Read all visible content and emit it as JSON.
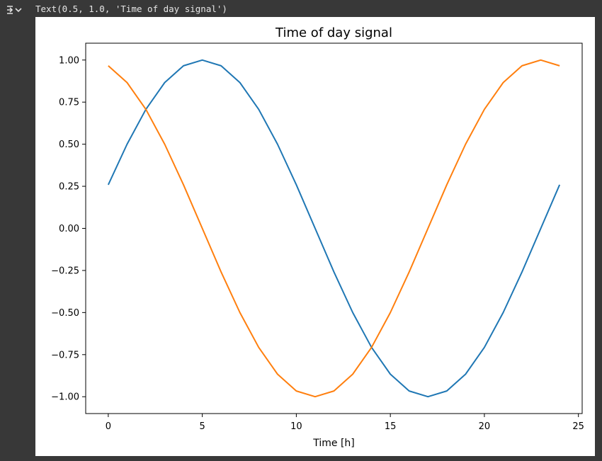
{
  "output": {
    "text": "Text(0.5, 1.0, 'Time of day signal')",
    "toggle_icon": "output-collapse-icon"
  },
  "chart_data": {
    "type": "line",
    "title": "Time of day signal",
    "xlabel": "Time [h]",
    "ylabel": "",
    "xlim": [
      -1.2,
      25.2
    ],
    "ylim": [
      -1.1,
      1.1
    ],
    "xticks": [
      0,
      5,
      10,
      15,
      20,
      25
    ],
    "xtick_labels": [
      "0",
      "5",
      "10",
      "15",
      "20",
      "25"
    ],
    "yticks": [
      1.0,
      0.75,
      0.5,
      0.25,
      0.0,
      -0.25,
      -0.5,
      -0.75,
      -1.0
    ],
    "ytick_labels": [
      "1.00",
      "0.75",
      "0.50",
      "0.25",
      "0.00",
      "−0.25",
      "−0.50",
      "−0.75",
      "−1.00"
    ],
    "grid": false,
    "x": [
      0,
      1,
      2,
      3,
      4,
      5,
      6,
      7,
      8,
      9,
      10,
      11,
      12,
      13,
      14,
      15,
      16,
      17,
      18,
      19,
      20,
      21,
      22,
      23,
      24
    ],
    "series": [
      {
        "color": "#1f77b4",
        "values": [
          0.259,
          0.5,
          0.707,
          0.866,
          0.966,
          1.0,
          0.966,
          0.866,
          0.707,
          0.5,
          0.259,
          0.0,
          -0.259,
          -0.5,
          -0.707,
          -0.866,
          -0.966,
          -1.0,
          -0.966,
          -0.866,
          -0.707,
          -0.5,
          -0.259,
          0.0,
          0.259
        ]
      },
      {
        "color": "#ff7f0e",
        "values": [
          0.966,
          0.866,
          0.707,
          0.5,
          0.259,
          0.0,
          -0.259,
          -0.5,
          -0.707,
          -0.866,
          -0.966,
          -1.0,
          -0.966,
          -0.866,
          -0.707,
          -0.5,
          -0.259,
          0.0,
          0.259,
          0.5,
          0.707,
          0.866,
          0.966,
          1.0,
          0.966
        ]
      }
    ]
  }
}
